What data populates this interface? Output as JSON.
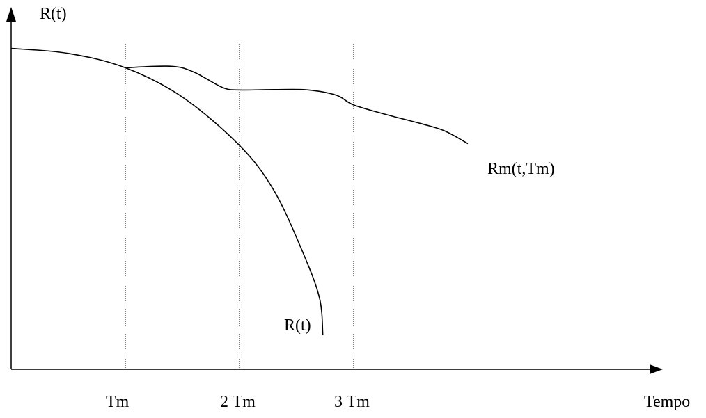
{
  "chart_data": {
    "type": "line",
    "title": "",
    "ylabel": "R(t)",
    "xlabel": "Tempo",
    "x_ticks": [
      {
        "label": "Tm",
        "x": 1
      },
      {
        "label": "2 Tm",
        "x": 2
      },
      {
        "label": "3 Tm",
        "x": 3
      }
    ],
    "xlim": [
      0,
      5.65
    ],
    "ylim": [
      0,
      1
    ],
    "grid": "vertical dotted lines at Tm, 2 Tm, 3 Tm",
    "series": [
      {
        "name": "R(t)",
        "color": "#000000",
        "points": [
          [
            0,
            0.896
          ],
          [
            0.5,
            0.882
          ],
          [
            1.0,
            0.842
          ],
          [
            1.5,
            0.76
          ],
          [
            2.0,
            0.625
          ],
          [
            2.3,
            0.5
          ],
          [
            2.55,
            0.33
          ],
          [
            2.7,
            0.2
          ],
          [
            2.73,
            0.096
          ]
        ]
      },
      {
        "name": "Rm(t,Tm)",
        "color": "#000000",
        "points": [
          [
            1.0,
            0.842
          ],
          [
            1.4,
            0.846
          ],
          [
            1.6,
            0.83
          ],
          [
            1.85,
            0.787
          ],
          [
            2.0,
            0.78
          ],
          [
            2.3,
            0.781
          ],
          [
            2.6,
            0.78
          ],
          [
            2.85,
            0.765
          ],
          [
            3.0,
            0.738
          ],
          [
            3.3,
            0.71
          ],
          [
            3.6,
            0.685
          ],
          [
            3.8,
            0.665
          ],
          [
            4.0,
            0.63
          ]
        ]
      }
    ]
  },
  "colors": {
    "axis": "#000000",
    "grid": "#000000",
    "background": "#ffffff"
  }
}
